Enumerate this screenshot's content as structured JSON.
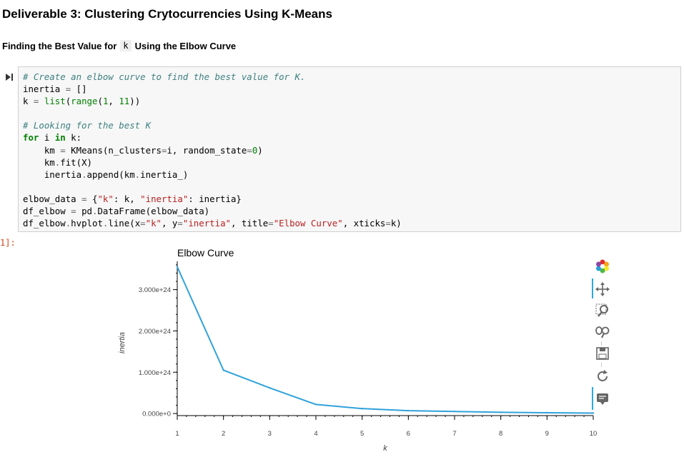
{
  "notebook": {
    "heading": "Deliverable 3: Clustering Crytocurrencies Using K-Means",
    "subheading_before": "Finding the Best Value for",
    "subheading_code": "k",
    "subheading_after": "Using the Elbow Curve",
    "cell": {
      "prompt": "1]:",
      "code_lines": [
        [
          [
            "cm",
            "# Create an elbow curve to find the best value for K."
          ]
        ],
        [
          [
            "",
            "inertia "
          ],
          [
            "op",
            "="
          ],
          [
            "",
            " []"
          ]
        ],
        [
          [
            "",
            "k "
          ],
          [
            "op",
            "="
          ],
          [
            "",
            " "
          ],
          [
            "bi",
            "list"
          ],
          [
            "",
            "("
          ],
          [
            "bi",
            "range"
          ],
          [
            "",
            "("
          ],
          [
            "nm",
            "1"
          ],
          [
            "",
            ", "
          ],
          [
            "nm",
            "11"
          ],
          [
            "",
            "))"
          ]
        ],
        [
          [
            "",
            ""
          ]
        ],
        [
          [
            "cm",
            "# Looking for the best K"
          ]
        ],
        [
          [
            "kw",
            "for"
          ],
          [
            "",
            " i "
          ],
          [
            "kw",
            "in"
          ],
          [
            "",
            " k:"
          ]
        ],
        [
          [
            "",
            "    km "
          ],
          [
            "op",
            "="
          ],
          [
            "",
            " KMeans(n_clusters"
          ],
          [
            "op",
            "="
          ],
          [
            "",
            "i, random_state"
          ],
          [
            "op",
            "="
          ],
          [
            "nm",
            "0"
          ],
          [
            "",
            ")"
          ]
        ],
        [
          [
            "",
            "    km"
          ],
          [
            "op",
            "."
          ],
          [
            "",
            "fit(X)"
          ]
        ],
        [
          [
            "",
            "    inertia"
          ],
          [
            "op",
            "."
          ],
          [
            "",
            "append(km"
          ],
          [
            "op",
            "."
          ],
          [
            "",
            "inertia_)"
          ]
        ],
        [
          [
            "",
            ""
          ]
        ],
        [
          [
            "",
            "elbow_data "
          ],
          [
            "op",
            "="
          ],
          [
            "",
            " {"
          ],
          [
            "st",
            "\"k\""
          ],
          [
            "",
            ": k, "
          ],
          [
            "st",
            "\"inertia\""
          ],
          [
            "",
            ": inertia}"
          ]
        ],
        [
          [
            "",
            "df_elbow "
          ],
          [
            "op",
            "="
          ],
          [
            "",
            " pd"
          ],
          [
            "op",
            "."
          ],
          [
            "",
            "DataFrame(elbow_data)"
          ]
        ],
        [
          [
            "",
            "df_elbow"
          ],
          [
            "op",
            "."
          ],
          [
            "",
            "hvplot"
          ],
          [
            "op",
            "."
          ],
          [
            "",
            "line(x"
          ],
          [
            "op",
            "="
          ],
          [
            "st",
            "\"k\""
          ],
          [
            "",
            ", y"
          ],
          [
            "op",
            "="
          ],
          [
            "st",
            "\"inertia\""
          ],
          [
            "",
            ", title"
          ],
          [
            "op",
            "="
          ],
          [
            "st",
            "\"Elbow Curve\""
          ],
          [
            "",
            ", xticks"
          ],
          [
            "op",
            "="
          ],
          [
            "",
            "k)"
          ]
        ]
      ]
    }
  },
  "toolbar": {
    "tools": [
      "bokeh-logo-icon",
      "pan-icon",
      "box-zoom-icon",
      "wheel-zoom-icon",
      "save-icon",
      "reset-icon",
      "hover-icon"
    ]
  },
  "chart_data": {
    "type": "line",
    "title": "Elbow Curve",
    "xlabel": "k",
    "ylabel": "inertia",
    "x": [
      1,
      2,
      3,
      4,
      5,
      6,
      7,
      8,
      9,
      10
    ],
    "xticks": [
      "1",
      "2",
      "3",
      "4",
      "5",
      "6",
      "7",
      "8",
      "9",
      "10"
    ],
    "yticks": [
      0,
      1e+24,
      2e+24,
      3e+24
    ],
    "ytick_labels": [
      "0.000e+0",
      "1.000e+24",
      "2.000e+24",
      "3.000e+24"
    ],
    "series": [
      {
        "values": [
          3.55e+24,
          1.05e+24,
          6.2e+23,
          2.2e+23,
          1.2e+23,
          7e+22,
          5e+22,
          3e+22,
          2e+22,
          1e+22
        ],
        "color": "#30a2da"
      }
    ],
    "xlim": [
      1,
      10
    ],
    "ylim": [
      -5e+22,
      3.65e+24
    ],
    "grid": false
  }
}
